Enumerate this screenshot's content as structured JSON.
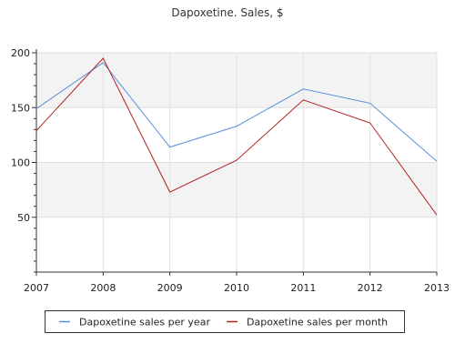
{
  "chart_data": {
    "type": "line",
    "title": "Dapoxetine. Sales, $",
    "xlabel": "",
    "ylabel": "",
    "categories": [
      "2007",
      "2008",
      "2009",
      "2010",
      "2011",
      "2012",
      "2013"
    ],
    "series": [
      {
        "name": "Dapoxetine sales per year",
        "color": "#5b8fd9",
        "values": [
          149,
          191,
          114,
          133,
          167,
          154,
          101
        ]
      },
      {
        "name": "Dapoxetine sales per month",
        "color": "#b22222",
        "values": [
          129,
          195,
          73,
          102,
          157,
          136,
          52
        ]
      }
    ],
    "ylim": [
      0,
      200
    ],
    "yticks": [
      50,
      100,
      150,
      200
    ],
    "grid": true,
    "legend": "bottom"
  }
}
